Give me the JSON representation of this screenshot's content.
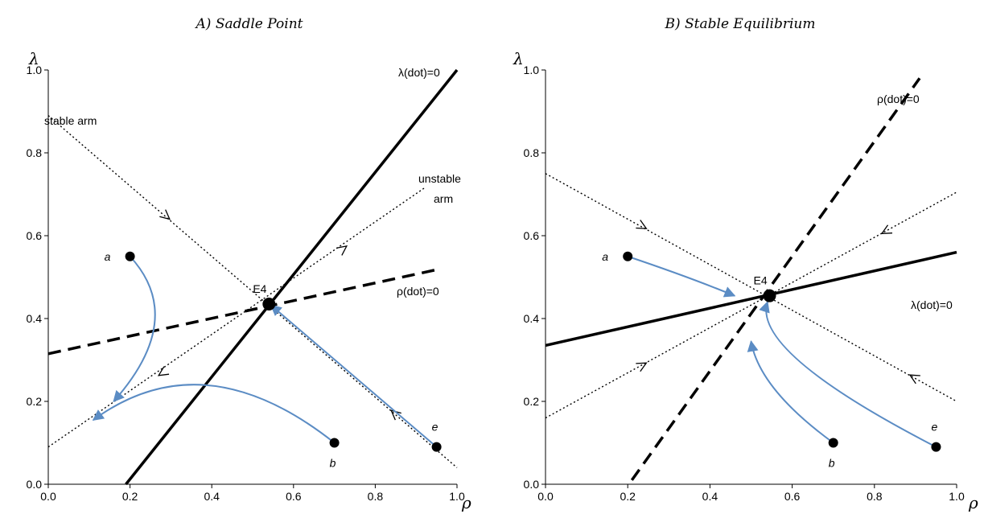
{
  "colors": {
    "trajectory": "#5b8cc4",
    "line": "#000000"
  },
  "panels": [
    {
      "id": "A",
      "title": "A) Saddle Point",
      "x_label": "ρ",
      "y_label": "λ",
      "x_ticks": [
        "0.0",
        "0.2",
        "0.4",
        "0.6",
        "0.8",
        "1.0"
      ],
      "y_ticks": [
        "0.0",
        "0.2",
        "0.4",
        "0.6",
        "0.8",
        "1.0"
      ],
      "xlim": [
        0,
        1
      ],
      "ylim": [
        0,
        1
      ],
      "equilibrium": {
        "label": "E4",
        "x": 0.54,
        "y": 0.435
      },
      "lambda_nullcline": {
        "label": "λ(dot)=0",
        "style": "solid",
        "from": [
          0.19,
          0
        ],
        "to": [
          1.0,
          1.0
        ]
      },
      "rho_nullcline": {
        "label": "ρ(dot)=0",
        "style": "dashed",
        "from": [
          0.0,
          0.315
        ],
        "to": [
          0.96,
          0.52
        ]
      },
      "stable_arm": {
        "label": "stable arm",
        "style": "dotted",
        "from": [
          0.0,
          0.89
        ],
        "to": [
          1.0,
          0.04
        ]
      },
      "unstable_arm": {
        "label": "unstable arm",
        "line1": "unstable",
        "line2": "arm",
        "style": "dotted",
        "from": [
          0.0,
          0.09
        ],
        "to": [
          0.92,
          0.715
        ]
      },
      "points": [
        {
          "label": "a",
          "x": 0.2,
          "y": 0.55
        },
        {
          "label": "b",
          "x": 0.7,
          "y": 0.1
        },
        {
          "label": "e",
          "x": 0.95,
          "y": 0.09
        }
      ],
      "trajectories": [
        {
          "from": "a",
          "pts": [
            [
              0.2,
              0.55
            ],
            [
              0.34,
              0.4
            ],
            [
              0.16,
              0.2
            ]
          ]
        },
        {
          "from": "b",
          "pts": [
            [
              0.7,
              0.1
            ],
            [
              0.38,
              0.35
            ],
            [
              0.11,
              0.155
            ]
          ]
        },
        {
          "from": "e",
          "pts": [
            [
              0.95,
              0.09
            ],
            [
              0.75,
              0.26
            ],
            [
              0.545,
              0.432
            ]
          ]
        }
      ]
    },
    {
      "id": "B",
      "title": "B) Stable Equilibrium",
      "x_label": "ρ",
      "y_label": "λ",
      "x_ticks": [
        "0.0",
        "0.2",
        "0.4",
        "0.6",
        "0.8",
        "1.0"
      ],
      "y_ticks": [
        "0.0",
        "0.2",
        "0.4",
        "0.6",
        "0.8",
        "1.0"
      ],
      "xlim": [
        0,
        1
      ],
      "ylim": [
        0,
        1
      ],
      "equilibrium": {
        "label": "E4",
        "x": 0.545,
        "y": 0.455
      },
      "lambda_nullcline": {
        "label": "λ(dot)=0",
        "style": "solid",
        "from": [
          0.0,
          0.335
        ],
        "to": [
          1.0,
          0.56
        ]
      },
      "rho_nullcline": {
        "label": "ρ(dot)=0",
        "style": "dashed",
        "from": [
          0.21,
          0.01
        ],
        "to": [
          0.91,
          0.98
        ]
      },
      "line_down": {
        "style": "dotted",
        "from": [
          0.0,
          0.75
        ],
        "to": [
          1.0,
          0.2
        ]
      },
      "line_up": {
        "style": "dotted",
        "from": [
          0.0,
          0.16
        ],
        "to": [
          1.0,
          0.705
        ]
      },
      "points": [
        {
          "label": "a",
          "x": 0.2,
          "y": 0.55
        },
        {
          "label": "b",
          "x": 0.7,
          "y": 0.1
        },
        {
          "label": "e",
          "x": 0.95,
          "y": 0.09
        }
      ],
      "trajectories": [
        {
          "from": "a",
          "pts": [
            [
              0.2,
              0.55
            ],
            [
              0.35,
              0.5
            ],
            [
              0.46,
              0.455
            ]
          ]
        },
        {
          "from": "b",
          "pts": [
            [
              0.7,
              0.1
            ],
            [
              0.52,
              0.23
            ],
            [
              0.5,
              0.345
            ]
          ]
        },
        {
          "from": "e",
          "pts": [
            [
              0.95,
              0.09
            ],
            [
              0.5,
              0.32
            ],
            [
              0.54,
              0.44
            ]
          ]
        }
      ]
    }
  ]
}
